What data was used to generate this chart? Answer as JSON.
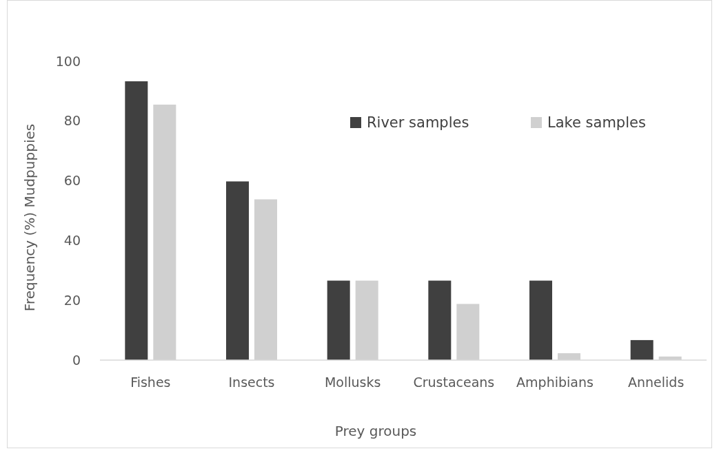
{
  "chart_data": {
    "type": "bar",
    "xlabel": "Prey groups",
    "ylabel": "Frequency (%) Mudpuppies",
    "categories": [
      "Fishes",
      "Insects",
      "Mollusks",
      "Crustaceans",
      "Amphibians",
      "Annelids"
    ],
    "series": [
      {
        "name": "River samples",
        "color": "#404040",
        "values": [
          93.3,
          59.8,
          26.6,
          26.6,
          26.6,
          6.7
        ]
      },
      {
        "name": "Lake samples",
        "color": "#d0d0d0",
        "values": [
          85.5,
          53.8,
          26.6,
          18.8,
          2.3,
          1.2
        ]
      }
    ],
    "ylim": [
      0,
      100
    ],
    "yticks": [
      0,
      20,
      40,
      60,
      80,
      100
    ],
    "grid": false,
    "legend": "top right"
  }
}
